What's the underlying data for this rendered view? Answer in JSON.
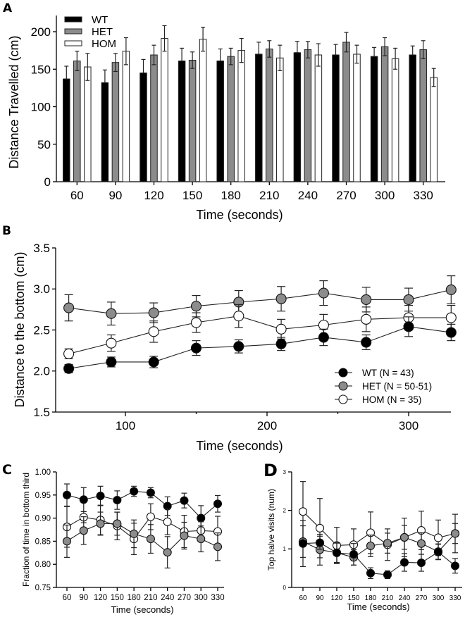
{
  "chart_data": [
    {
      "panel": "A",
      "type": "bar",
      "title": "",
      "xlabel": "Time (seconds)",
      "ylabel": "Distance Travelled (cm)",
      "ylim": [
        0,
        220
      ],
      "yticks": [
        0,
        50,
        100,
        150,
        200
      ],
      "categories": [
        "60",
        "90",
        "120",
        "150",
        "180",
        "210",
        "240",
        "270",
        "300",
        "330"
      ],
      "legend_position": "top-left",
      "error_bars": true,
      "series": [
        {
          "name": "WT",
          "color": "#000000",
          "values": [
            137,
            132,
            145,
            161,
            161,
            170,
            172,
            169,
            167,
            169
          ],
          "errors": [
            17,
            17,
            18,
            17,
            16,
            16,
            15,
            14,
            12,
            12
          ]
        },
        {
          "name": "HET",
          "color": "#8c8c8c",
          "values": [
            161,
            159,
            169,
            162,
            167,
            177,
            176,
            186,
            180,
            176
          ],
          "errors": [
            13,
            12,
            13,
            11,
            11,
            11,
            11,
            13,
            12,
            12
          ]
        },
        {
          "name": "HOM",
          "color": "#ffffff",
          "values": [
            153,
            174,
            191,
            190,
            175,
            165,
            169,
            170,
            164,
            139
          ],
          "errors": [
            18,
            18,
            17,
            16,
            16,
            17,
            15,
            12,
            14,
            12
          ]
        }
      ]
    },
    {
      "panel": "B",
      "type": "line",
      "title": "",
      "xlabel": "Time (seconds)",
      "ylabel": "Distance to the bottom (cm)",
      "xlim": [
        47,
        330
      ],
      "ylim": [
        1.5,
        3.5
      ],
      "xticks": [
        100,
        200,
        300
      ],
      "xminor_ticks": [
        150,
        250
      ],
      "yticks": [
        "1.5",
        "2.0",
        "2.5",
        "3.0",
        "3.5"
      ],
      "x": [
        60,
        90,
        120,
        150,
        180,
        210,
        240,
        270,
        300,
        330
      ],
      "legend_position": "bottom-right",
      "error_bars": true,
      "series": [
        {
          "name": "WT (N = 43)",
          "marker": "filled-black",
          "values": [
            2.03,
            2.11,
            2.11,
            2.28,
            2.3,
            2.33,
            2.41,
            2.35,
            2.54,
            2.47
          ],
          "errors": [
            0.05,
            0.06,
            0.07,
            0.09,
            0.08,
            0.08,
            0.1,
            0.09,
            0.12,
            0.1
          ]
        },
        {
          "name": "HET (N = 50-51)",
          "marker": "filled-gray",
          "values": [
            2.77,
            2.7,
            2.71,
            2.79,
            2.84,
            2.88,
            2.95,
            2.87,
            2.87,
            2.99
          ],
          "errors": [
            0.16,
            0.14,
            0.12,
            0.13,
            0.14,
            0.15,
            0.15,
            0.15,
            0.14,
            0.17
          ]
        },
        {
          "name": "HOM (N = 35)",
          "marker": "open-circle",
          "values": [
            2.21,
            2.34,
            2.48,
            2.59,
            2.67,
            2.51,
            2.56,
            2.63,
            2.65,
            2.65
          ],
          "errors": [
            0.06,
            0.1,
            0.13,
            0.12,
            0.14,
            0.12,
            0.13,
            0.15,
            0.15,
            0.15
          ]
        }
      ]
    },
    {
      "panel": "C",
      "type": "line",
      "title": "",
      "xlabel": "Time (seconds)",
      "ylabel": "Fraction of time in bottom third",
      "ylim": [
        0.75,
        1.0
      ],
      "yticks": [
        "0.75",
        "0.80",
        "0.85",
        "0.90",
        "0.95",
        "1.00"
      ],
      "categories": [
        "60",
        "90",
        "120",
        "150",
        "180",
        "210",
        "240",
        "270",
        "300",
        "330"
      ],
      "error_bars": true,
      "series": [
        {
          "name": "WT",
          "marker": "filled-black",
          "values": [
            0.95,
            0.94,
            0.948,
            0.939,
            0.958,
            0.955,
            0.926,
            0.938,
            0.9,
            0.931
          ],
          "errors": [
            0.024,
            0.026,
            0.021,
            0.02,
            0.011,
            0.011,
            0.02,
            0.016,
            0.027,
            0.018
          ]
        },
        {
          "name": "HET",
          "marker": "filled-gray",
          "values": [
            0.85,
            0.873,
            0.888,
            0.888,
            0.866,
            0.855,
            0.826,
            0.862,
            0.855,
            0.838
          ],
          "errors": [
            0.035,
            0.03,
            0.025,
            0.025,
            0.03,
            0.031,
            0.034,
            0.029,
            0.028,
            0.03
          ]
        },
        {
          "name": "HOM",
          "marker": "open-circle",
          "values": [
            0.881,
            0.902,
            0.896,
            0.883,
            0.855,
            0.903,
            0.892,
            0.871,
            0.873,
            0.871
          ],
          "errors": [
            0.044,
            0.012,
            0.032,
            0.03,
            0.034,
            0.028,
            0.028,
            0.035,
            0.019,
            0.033
          ]
        }
      ]
    },
    {
      "panel": "D",
      "type": "line",
      "title": "",
      "xlabel": "Time (seconds)",
      "ylabel": "Top halve visits (num)",
      "ylim": [
        0,
        3
      ],
      "yticks": [
        "0",
        "1",
        "2",
        "3"
      ],
      "categories": [
        "60",
        "90",
        "120",
        "150",
        "180",
        "210",
        "240",
        "270",
        "300",
        "330"
      ],
      "error_bars": true,
      "series": [
        {
          "name": "WT",
          "marker": "filled-black",
          "values": [
            1.14,
            1.16,
            0.9,
            0.86,
            0.37,
            0.33,
            0.65,
            0.64,
            0.92,
            0.56
          ],
          "errors": [
            0.6,
            0.17,
            0.25,
            0.28,
            0.14,
            0.1,
            0.23,
            0.22,
            0.2,
            0.19
          ]
        },
        {
          "name": "HET",
          "marker": "filled-gray",
          "values": [
            1.19,
            0.98,
            0.9,
            0.78,
            1.08,
            1.15,
            1.3,
            1.14,
            0.93,
            1.4
          ],
          "errors": [
            0.41,
            0.4,
            0.26,
            0.2,
            0.28,
            0.26,
            0.31,
            0.28,
            0.2,
            0.26
          ]
        },
        {
          "name": "HOM",
          "marker": "open-circle",
          "values": [
            1.97,
            1.54,
            1.09,
            1.11,
            1.42,
            1.11,
            1.3,
            1.48,
            1.29,
            1.4
          ],
          "errors": [
            0.78,
            0.77,
            0.47,
            0.41,
            0.54,
            0.41,
            0.5,
            0.5,
            0.46,
            0.5
          ]
        }
      ]
    }
  ],
  "panel_labels": [
    "A",
    "B",
    "C",
    "D"
  ]
}
